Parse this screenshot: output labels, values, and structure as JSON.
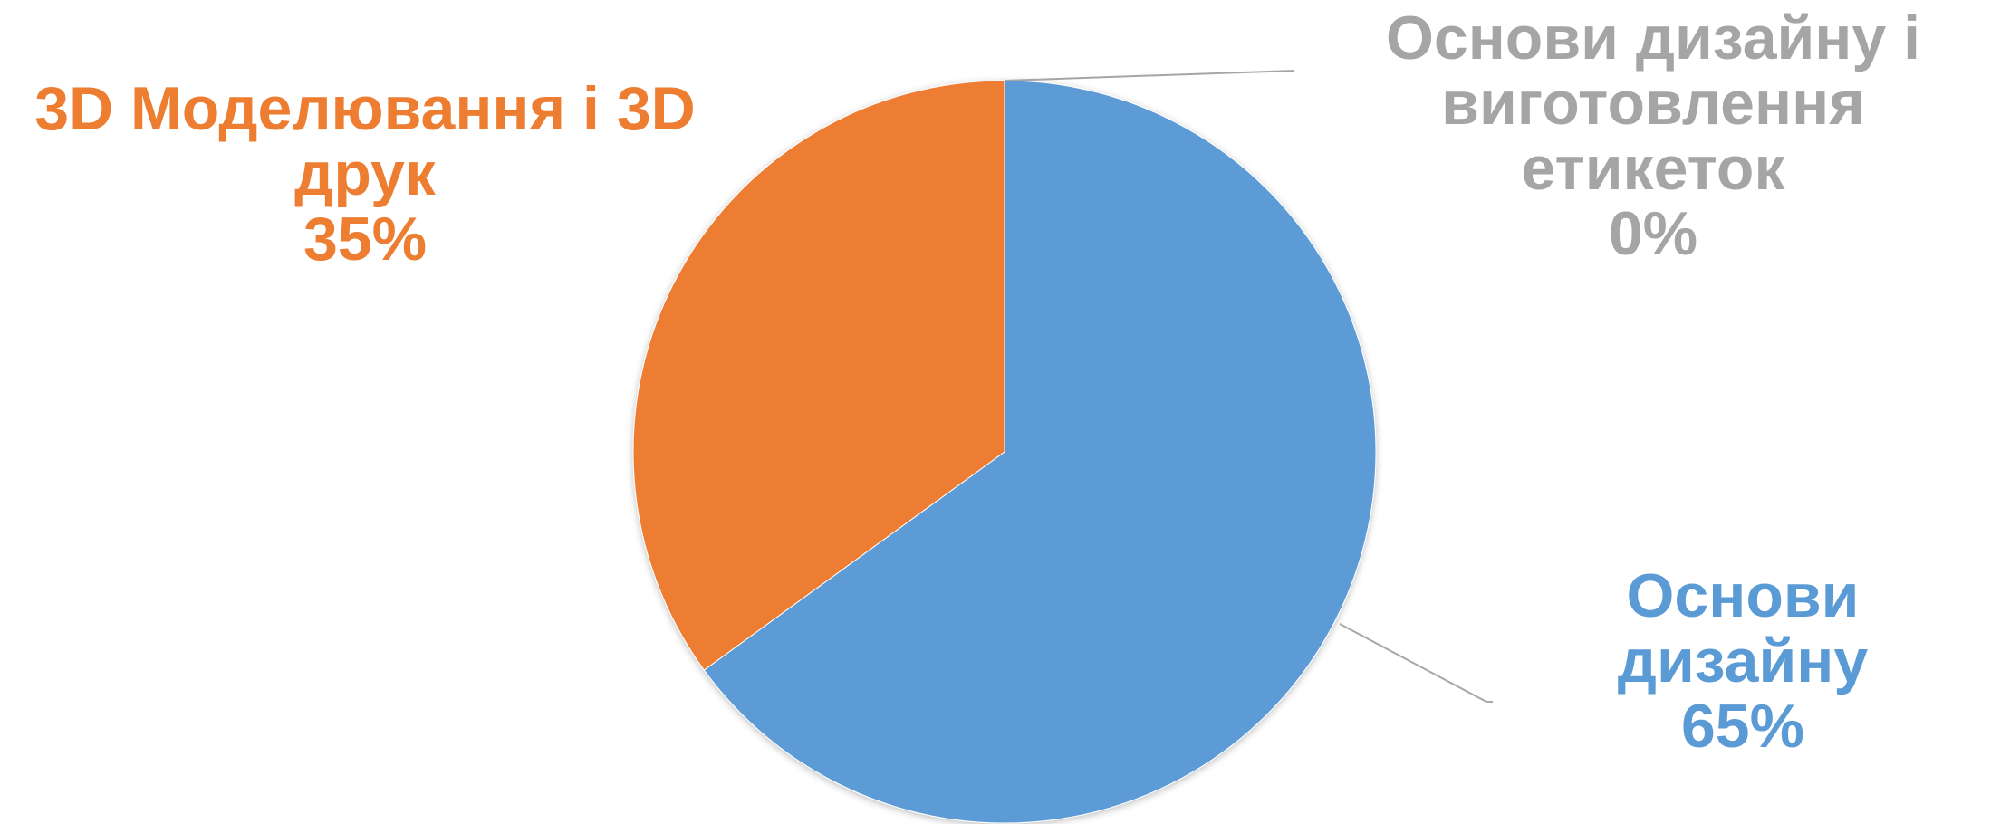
{
  "chart_data": {
    "type": "pie",
    "categories": [
      "Основи дизайну",
      "3D Моделювання і 3D друк",
      "Основи дизайну і виготовлення етикеток"
    ],
    "values": [
      65,
      35,
      0
    ],
    "value_labels": [
      "65%",
      "35%",
      "0%"
    ],
    "colors": [
      "#5b9bd5",
      "#ed7d31",
      "#a5a5a5"
    ]
  }
}
